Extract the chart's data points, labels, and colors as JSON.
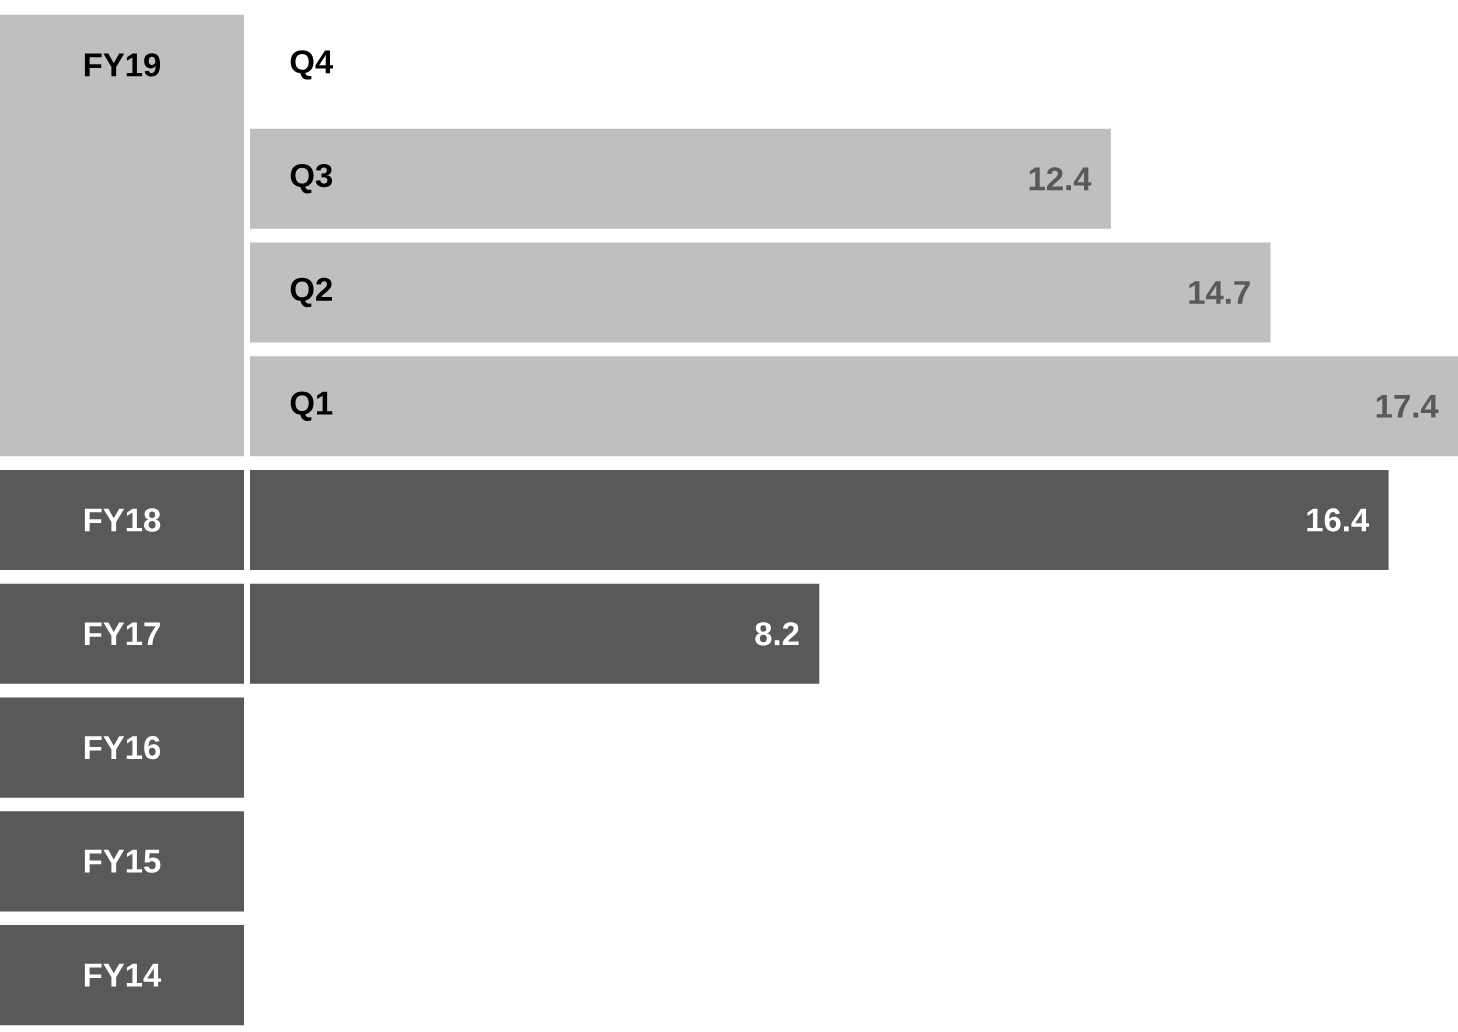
{
  "chart_data": {
    "type": "bar",
    "orientation": "horizontal",
    "categories": [
      "Q4",
      "Q3",
      "Q2",
      "Q1",
      "FY18",
      "FY17",
      "FY16",
      "FY15",
      "FY14"
    ],
    "values": [
      null,
      12.4,
      14.7,
      17.4,
      16.4,
      8.2,
      null,
      null,
      null
    ],
    "colors": [
      "#bfbfbf",
      "#bfbfbf",
      "#bfbfbf",
      "#bfbfbf",
      "#595959",
      "#595959",
      "#595959",
      "#595959",
      "#595959"
    ],
    "data_labels": true,
    "annotations": [
      "FY19"
    ]
  }
}
